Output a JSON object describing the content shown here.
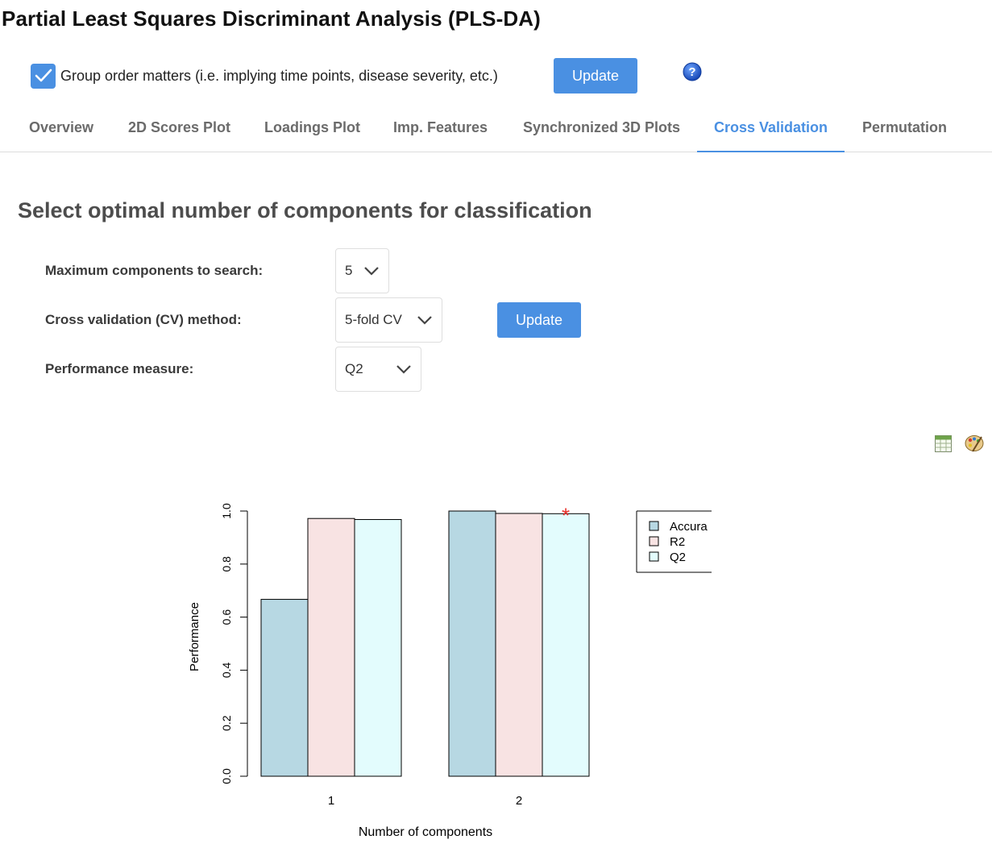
{
  "page": {
    "title": "Partial Least Squares Discriminant Analysis (PLS-DA)"
  },
  "top_controls": {
    "group_order_checked": true,
    "group_order_label": "Group order matters (i.e. implying time points, disease severity, etc.)",
    "update_label": "Update",
    "help_icon": "question-circle-icon"
  },
  "tabs": [
    {
      "label": "Overview"
    },
    {
      "label": "2D Scores Plot"
    },
    {
      "label": "Loadings Plot"
    },
    {
      "label": "Imp. Features"
    },
    {
      "label": "Synchronized 3D Plots"
    },
    {
      "label": "Cross Validation",
      "active": true
    },
    {
      "label": "Permutation"
    }
  ],
  "section": {
    "title": "Select optimal number of components for classification",
    "max_components_label": "Maximum components to search:",
    "max_components_value": "5",
    "cv_method_label": "Cross validation (CV) method:",
    "cv_method_value": "5-fold CV",
    "perf_label": "Performance measure:",
    "perf_value": "Q2",
    "update_label": "Update"
  },
  "tools": {
    "table_icon": "table-icon",
    "palette_icon": "palette-icon"
  },
  "colors": {
    "accent": "#4a90e2",
    "accuracy": "#b7d8e3",
    "r2": "#f8e3e3",
    "q2": "#e3fcfd",
    "best_marker": "#e8312b"
  },
  "chart_data": {
    "type": "bar",
    "categories": [
      "1",
      "2"
    ],
    "series": [
      {
        "name": "Accura",
        "values": [
          0.667,
          1.0
        ]
      },
      {
        "name": "R2",
        "values": [
          0.972,
          0.991
        ]
      },
      {
        "name": "Q2",
        "values": [
          0.968,
          0.99
        ]
      }
    ],
    "xlabel": "Number of components",
    "ylabel": "Performance",
    "yticks": [
      "0.0",
      "0.2",
      "0.4",
      "0.6",
      "0.8",
      "1.0"
    ],
    "ylim": [
      0,
      1
    ],
    "best_marker": "*",
    "best": {
      "category": "2",
      "series": "Q2"
    },
    "legend_position": "top-right"
  }
}
